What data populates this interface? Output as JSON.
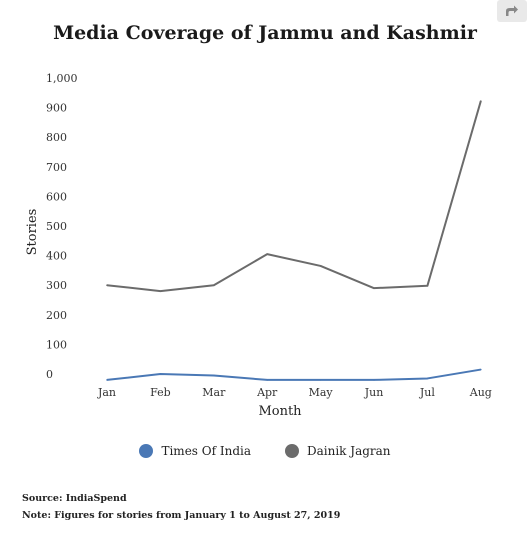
{
  "chart_data": {
    "type": "line",
    "title": "Media Coverage of Jammu and Kashmir",
    "xlabel": "Month",
    "ylabel": "Stories",
    "categories": [
      "Jan",
      "Feb",
      "Mar",
      "Apr",
      "May",
      "Jun",
      "Jul",
      "Aug"
    ],
    "yticks": [
      "0",
      "100",
      "200",
      "300",
      "400",
      "500",
      "600",
      "700",
      "800",
      "900",
      "1,000"
    ],
    "ylim": [
      0,
      1000
    ],
    "grid": false,
    "legend_position": "bottom",
    "series": [
      {
        "name": "Times Of India",
        "color": "#4a78b5",
        "values": [
          -20,
          0,
          -5,
          -20,
          -20,
          -20,
          -15,
          15
        ]
      },
      {
        "name": "Dainik Jagran",
        "color": "#6b6b6b",
        "values": [
          300,
          280,
          300,
          405,
          365,
          290,
          298,
          922
        ]
      }
    ]
  },
  "footer": {
    "source": "Source: IndiaSpend",
    "note": "Note: Figures for stories from January 1 to August 27, 2019"
  },
  "icons": {
    "share": "share-arrow-icon"
  }
}
